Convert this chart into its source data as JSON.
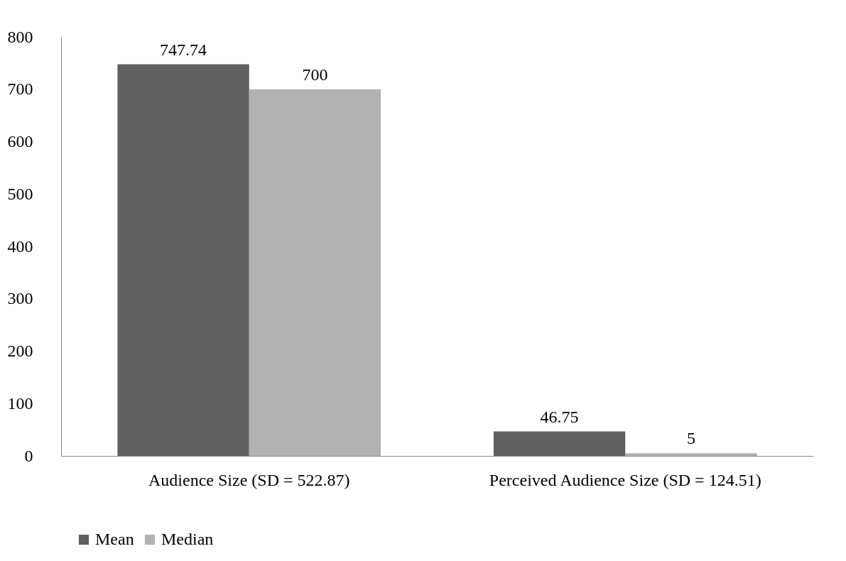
{
  "chart_data": {
    "type": "bar",
    "categories": [
      "Audience Size (SD = 522.87)",
      "Perceived  Audience Size (SD = 124.51)"
    ],
    "series": [
      {
        "name": "Mean",
        "color": "#606060",
        "values": [
          747.74,
          46.75
        ]
      },
      {
        "name": "Median",
        "color": "#b2b2b2",
        "values": [
          700,
          5
        ]
      }
    ],
    "ylim": [
      0,
      800
    ],
    "yticks": [
      0,
      100,
      200,
      300,
      400,
      500,
      600,
      700,
      800
    ],
    "data_labels": true,
    "grid": false,
    "legend": "bottom"
  }
}
